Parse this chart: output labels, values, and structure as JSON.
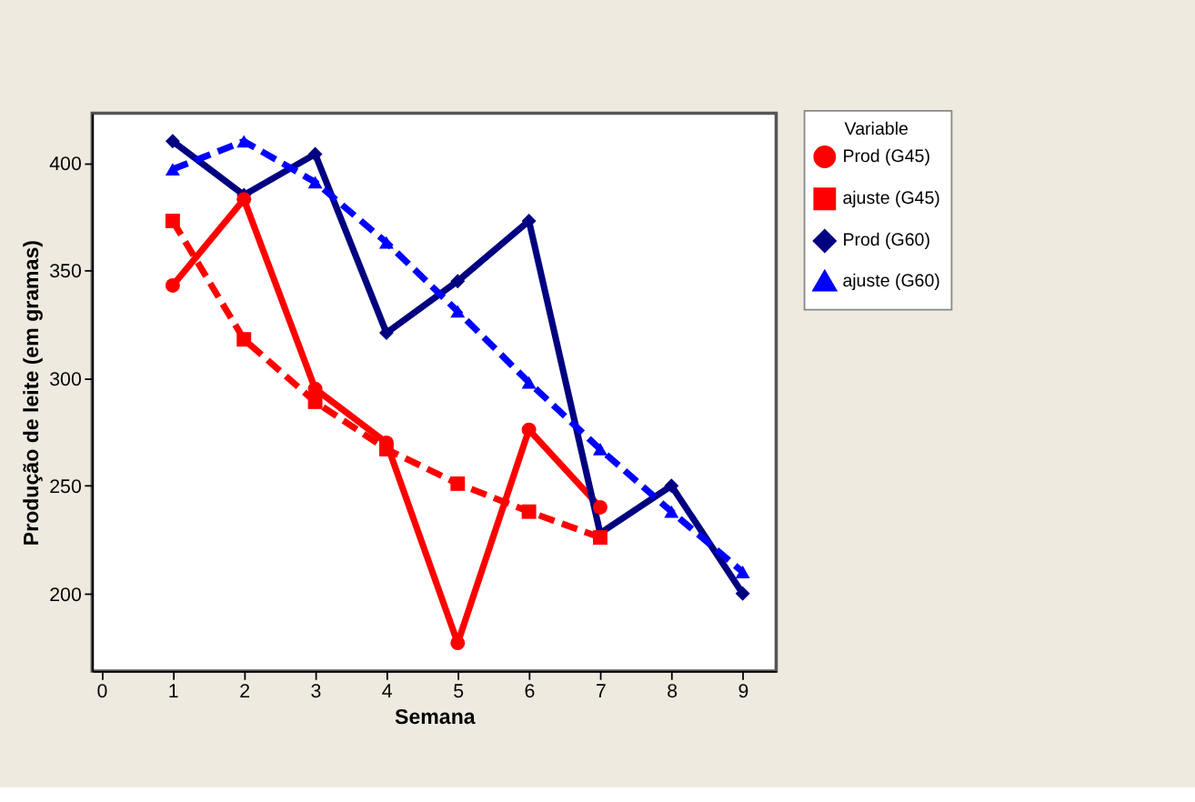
{
  "chart_data": {
    "type": "line",
    "xlabel": "Semana",
    "ylabel": "Produção de leite (em gramas)",
    "legend_title": "Variable",
    "legend": "right",
    "grid": false,
    "xlim": [
      -0.13,
      9.47
    ],
    "xticks": [
      0,
      1,
      2,
      3,
      4,
      5,
      6,
      7,
      8,
      9
    ],
    "ylim": [
      164,
      423
    ],
    "yticks": [
      200,
      250,
      300,
      350,
      400
    ],
    "series": [
      {
        "name": "Prod (G45)",
        "color": "#ff0000",
        "marker": "circle",
        "line_style": "solid",
        "x": [
          1,
          2,
          3,
          4,
          5,
          6,
          7
        ],
        "values": [
          343,
          383,
          295,
          270,
          177,
          276,
          240
        ]
      },
      {
        "name": "ajuste (G45)",
        "color": "#ff0000",
        "marker": "square",
        "line_style": "dashed",
        "x": [
          1,
          2,
          3,
          4,
          5,
          6,
          7
        ],
        "values": [
          373,
          318,
          289,
          267,
          251,
          238,
          226
        ]
      },
      {
        "name": "Prod (G60)",
        "color": "#000080",
        "marker": "diamond",
        "line_style": "solid",
        "x": [
          1,
          2,
          3,
          4,
          5,
          6,
          7,
          8,
          9
        ],
        "values": [
          410,
          385,
          404,
          321,
          345,
          373,
          228,
          250,
          200
        ]
      },
      {
        "name": "ajuste (G60)",
        "color": "#0000ff",
        "marker": "triangle",
        "line_style": "dashed",
        "x": [
          1,
          2,
          3,
          4,
          5,
          6,
          7,
          8,
          9
        ],
        "values": [
          397,
          410,
          391,
          363,
          331,
          298,
          267,
          238,
          210
        ]
      }
    ]
  }
}
